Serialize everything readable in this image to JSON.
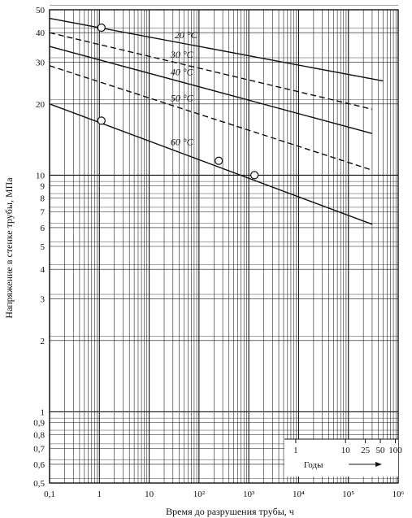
{
  "chart_data": {
    "type": "line",
    "xlabel": "Время до разрушения трубы, ч",
    "ylabel": "Напряжение в стенке трубы, МПа",
    "x_scale": "log",
    "y_scale": "log",
    "xlim": [
      0.1,
      1000000
    ],
    "ylim": [
      0.5,
      50
    ],
    "grid": true,
    "x_ticks": [
      {
        "value": 0.1,
        "label": "0,1"
      },
      {
        "value": 1,
        "label": "1"
      },
      {
        "value": 10,
        "label": "10"
      },
      {
        "value": 100,
        "label": "10²"
      },
      {
        "value": 1000,
        "label": "10³"
      },
      {
        "value": 10000,
        "label": "10⁴"
      },
      {
        "value": 100000,
        "label": "10⁵"
      },
      {
        "value": 1000000,
        "label": "10⁶"
      }
    ],
    "y_ticks": [
      {
        "value": 0.5,
        "label": "0,5"
      },
      {
        "value": 0.6,
        "label": "0,6"
      },
      {
        "value": 0.7,
        "label": "0,7"
      },
      {
        "value": 0.8,
        "label": "0,8"
      },
      {
        "value": 0.9,
        "label": "0,9"
      },
      {
        "value": 1,
        "label": "1"
      },
      {
        "value": 2,
        "label": "2"
      },
      {
        "value": 3,
        "label": "3"
      },
      {
        "value": 4,
        "label": "4"
      },
      {
        "value": 5,
        "label": "5"
      },
      {
        "value": 6,
        "label": "6"
      },
      {
        "value": 7,
        "label": "7"
      },
      {
        "value": 8,
        "label": "8"
      },
      {
        "value": 9,
        "label": "9"
      },
      {
        "value": 10,
        "label": "10"
      },
      {
        "value": 20,
        "label": "20"
      },
      {
        "value": 30,
        "label": "30"
      },
      {
        "value": 40,
        "label": "40"
      },
      {
        "value": 50,
        "label": "50"
      }
    ],
    "series": [
      {
        "name": "20 °C",
        "style": "solid",
        "x": [
          0.1,
          500000
        ],
        "y": [
          46,
          25
        ]
      },
      {
        "name": "30 °C",
        "style": "dashed",
        "x": [
          0.1,
          300000
        ],
        "y": [
          40,
          19
        ]
      },
      {
        "name": "40 °C",
        "style": "solid",
        "x": [
          0.1,
          300000
        ],
        "y": [
          35,
          15
        ]
      },
      {
        "name": "50 °C",
        "style": "dashed",
        "x": [
          0.1,
          300000
        ],
        "y": [
          29,
          10.5
        ]
      },
      {
        "name": "60 °C",
        "style": "solid",
        "x": [
          0.1,
          300000
        ],
        "y": [
          20,
          6.2
        ]
      }
    ],
    "markers": [
      {
        "x": 1.1,
        "y": 42
      },
      {
        "x": 1.1,
        "y": 17
      },
      {
        "x": 250,
        "y": 11.5
      },
      {
        "x": 1300,
        "y": 10
      }
    ],
    "years_axis": {
      "title": "Годы",
      "ticks": [
        {
          "label": "1",
          "hours": 8760
        },
        {
          "label": "10",
          "hours": 87600
        },
        {
          "label": "25",
          "hours": 219000
        },
        {
          "label": "50",
          "hours": 438000
        },
        {
          "label": "100",
          "hours": 876000
        }
      ]
    },
    "colors": {
      "ink": "#111111",
      "background": "#ffffff"
    }
  }
}
